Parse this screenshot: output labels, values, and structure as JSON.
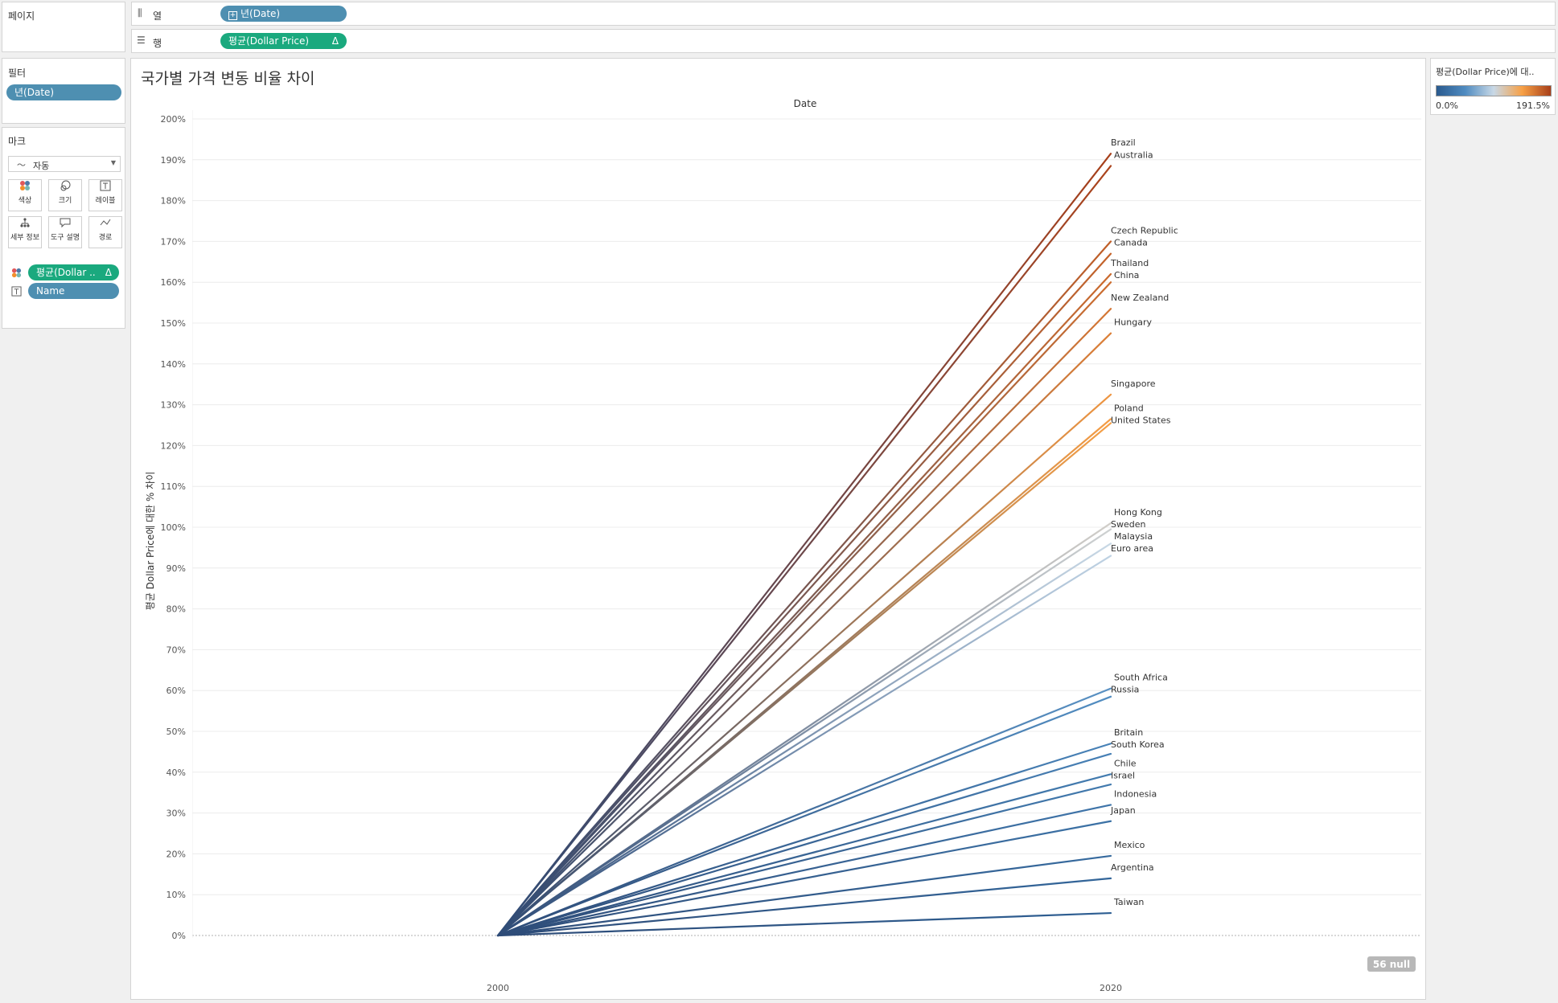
{
  "pages_shelf": {
    "title": "페이지"
  },
  "columns_shelf": {
    "icon": "columns-icon",
    "label": "열",
    "pill": "년(Date)"
  },
  "rows_shelf": {
    "icon": "rows-icon",
    "label": "행",
    "pill": "평균(Dollar Price)",
    "delta": "Δ"
  },
  "filters": {
    "title": "필터",
    "pill": "년(Date)"
  },
  "marks": {
    "title": "마크",
    "mark_type": "자동",
    "buttons": [
      {
        "name": "color",
        "label": "색상",
        "icon": "color-dots-icon"
      },
      {
        "name": "size",
        "label": "크기",
        "icon": "size-icon"
      },
      {
        "name": "label",
        "label": "레이블",
        "icon": "text-label-icon"
      },
      {
        "name": "detail",
        "label": "세부 정보",
        "icon": "detail-icon"
      },
      {
        "name": "tooltip",
        "label": "도구 설명",
        "icon": "tooltip-icon"
      },
      {
        "name": "path",
        "label": "경로",
        "icon": "path-icon"
      }
    ],
    "fields": [
      {
        "type": "color",
        "label": "평균(Dollar ..",
        "delta": "Δ"
      },
      {
        "type": "text",
        "label": "Name"
      }
    ]
  },
  "legend": {
    "title": "평균(Dollar Price)에 대..",
    "min_label": "0.0%",
    "max_label": "191.5%",
    "colors": [
      "#2a5a8e",
      "#4f8bc0",
      "#c8d8e6",
      "#f7a046",
      "#a8401a"
    ]
  },
  "null_badge": "56 null",
  "chart_data": {
    "type": "line",
    "title": "국가별 가격 변동 비율 차이",
    "xlabel": "Date",
    "ylabel": "평균 Dollar Price에 대한 % 차이",
    "x": [
      "2000",
      "2020"
    ],
    "ylim": [
      0,
      200
    ],
    "yticks": [
      "0%",
      "10%",
      "20%",
      "30%",
      "40%",
      "50%",
      "60%",
      "70%",
      "80%",
      "90%",
      "100%",
      "110%",
      "120%",
      "130%",
      "140%",
      "150%",
      "160%",
      "170%",
      "180%",
      "190%",
      "200%"
    ],
    "color_range": [
      0,
      191.5
    ],
    "grid": true,
    "series": [
      {
        "name": "Brazil",
        "values": [
          0,
          191.5
        ]
      },
      {
        "name": "Australia",
        "values": [
          0,
          188.5
        ]
      },
      {
        "name": "Czech Republic",
        "values": [
          0,
          170
        ]
      },
      {
        "name": "Canada",
        "values": [
          0,
          167
        ]
      },
      {
        "name": "Thailand",
        "values": [
          0,
          162
        ]
      },
      {
        "name": "China",
        "values": [
          0,
          160
        ]
      },
      {
        "name": "New Zealand",
        "values": [
          0,
          153.5
        ]
      },
      {
        "name": "Hungary",
        "values": [
          0,
          147.5
        ]
      },
      {
        "name": "Singapore",
        "values": [
          0,
          132.5
        ]
      },
      {
        "name": "Poland",
        "values": [
          0,
          126.5
        ]
      },
      {
        "name": "United States",
        "values": [
          0,
          125.5
        ]
      },
      {
        "name": "Hong Kong",
        "values": [
          0,
          101
        ]
      },
      {
        "name": "Sweden",
        "values": [
          0,
          99.5
        ]
      },
      {
        "name": "Malaysia",
        "values": [
          0,
          96
        ]
      },
      {
        "name": "Euro area",
        "values": [
          0,
          93
        ]
      },
      {
        "name": "South Africa",
        "values": [
          0,
          60.5
        ]
      },
      {
        "name": "Russia",
        "values": [
          0,
          58.5
        ]
      },
      {
        "name": "Britain",
        "values": [
          0,
          47
        ]
      },
      {
        "name": "South Korea",
        "values": [
          0,
          44.5
        ]
      },
      {
        "name": "Chile",
        "values": [
          0,
          39.5
        ]
      },
      {
        "name": "Israel",
        "values": [
          0,
          37
        ]
      },
      {
        "name": "Indonesia",
        "values": [
          0,
          32
        ]
      },
      {
        "name": "Japan",
        "values": [
          0,
          28
        ]
      },
      {
        "name": "Mexico",
        "values": [
          0,
          19.5
        ]
      },
      {
        "name": "Argentina",
        "values": [
          0,
          14
        ]
      },
      {
        "name": "Taiwan",
        "values": [
          0,
          5.5
        ]
      }
    ]
  }
}
